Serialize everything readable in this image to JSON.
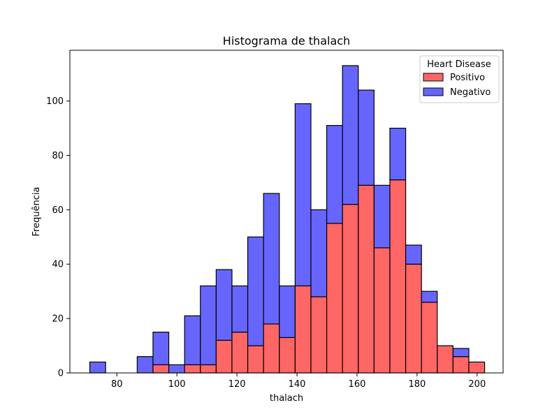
{
  "chart_data": {
    "type": "bar",
    "title": "Histograma de thalach",
    "xlabel": "thalach",
    "ylabel": "Frequência",
    "xlim": [
      64.35,
      208.65
    ],
    "ylim": [
      0,
      118.65
    ],
    "xticks": [
      80,
      100,
      120,
      140,
      160,
      180,
      200
    ],
    "yticks": [
      0,
      20,
      40,
      60,
      80,
      100
    ],
    "stacked": true,
    "bin_edges": [
      71.0,
      76.26,
      81.52,
      86.78,
      92.04,
      97.3,
      102.56,
      107.82,
      113.08,
      118.34,
      123.6,
      128.86,
      134.12,
      139.38,
      144.64,
      149.9,
      155.16,
      160.42,
      165.68,
      170.94,
      176.2,
      181.46,
      186.72,
      191.98,
      197.24,
      202.5
    ],
    "series": [
      {
        "name": "Positivo",
        "color": "#ff6666",
        "values": [
          0,
          0,
          0,
          0,
          3,
          0,
          3,
          3,
          12,
          15,
          10,
          18,
          13,
          32,
          28,
          55,
          62,
          69,
          46,
          71,
          40,
          26,
          10,
          6,
          4
        ]
      },
      {
        "name": "Negativo",
        "color": "#6666ff",
        "values": [
          4,
          0,
          0,
          6,
          12,
          3,
          18,
          29,
          26,
          17,
          40,
          48,
          19,
          67,
          32,
          36,
          51,
          35,
          23,
          19,
          7,
          4,
          0,
          3,
          0
        ]
      }
    ],
    "legend": {
      "title": "Heart Disease",
      "placement": "top-right",
      "entries": [
        "Positivo",
        "Negativo"
      ]
    },
    "grid": false
  }
}
